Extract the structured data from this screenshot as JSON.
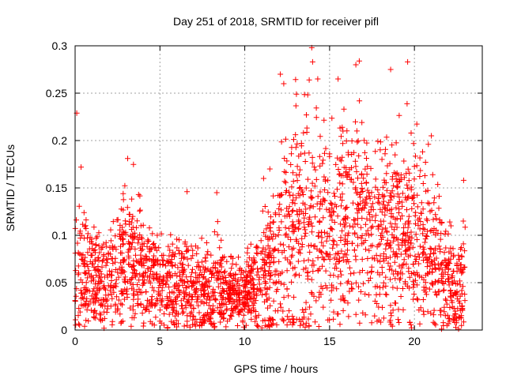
{
  "chart_data": {
    "type": "scatter",
    "title": "Day 251 of 2018, SRMTID for receiver pifl",
    "xlabel": "GPS time / hours",
    "ylabel": "SRMTID / TECUs",
    "xlim": [
      0,
      24
    ],
    "ylim": [
      0,
      0.3
    ],
    "x_ticks": [
      0,
      5,
      10,
      15,
      20
    ],
    "x_tick_labels": [
      "0",
      "5",
      "10",
      "15",
      "20"
    ],
    "y_ticks": [
      0,
      0.05,
      0.1,
      0.15,
      0.2,
      0.25,
      0.3
    ],
    "y_tick_labels": [
      "0",
      "0.05",
      "0.1",
      "0.15",
      "0.2",
      "0.25",
      "0.3"
    ],
    "grid": true,
    "marker": "plus",
    "colors": {
      "series": "#ff0000",
      "axes": "#000000",
      "grid": "#a0a0a0"
    },
    "series": [
      {
        "envelope_hours": [
          0,
          0.5,
          1,
          1.5,
          2,
          2.5,
          3,
          3.5,
          4,
          4.5,
          5,
          5.5,
          6,
          6.5,
          7,
          7.5,
          8,
          8.5,
          9,
          9.5,
          10,
          10.5,
          11,
          11.5,
          12,
          12.5,
          13,
          13.5,
          14,
          14.5,
          15,
          15.5,
          16,
          16.5,
          17,
          17.5,
          18,
          18.5,
          19,
          19.5,
          20,
          20.5,
          21,
          21.5,
          22,
          22.5,
          23
        ],
        "envelope_median": [
          0.055,
          0.06,
          0.055,
          0.05,
          0.05,
          0.065,
          0.075,
          0.07,
          0.065,
          0.06,
          0.055,
          0.05,
          0.048,
          0.045,
          0.045,
          0.042,
          0.045,
          0.05,
          0.04,
          0.035,
          0.045,
          0.05,
          0.06,
          0.07,
          0.085,
          0.1,
          0.11,
          0.11,
          0.11,
          0.1,
          0.1,
          0.11,
          0.12,
          0.12,
          0.11,
          0.1,
          0.1,
          0.11,
          0.1,
          0.1,
          0.11,
          0.1,
          0.09,
          0.07,
          0.05,
          0.04,
          0.06
        ],
        "envelope_spread": [
          0.045,
          0.04,
          0.035,
          0.035,
          0.035,
          0.04,
          0.045,
          0.045,
          0.04,
          0.035,
          0.03,
          0.03,
          0.03,
          0.03,
          0.03,
          0.03,
          0.03,
          0.035,
          0.025,
          0.02,
          0.025,
          0.03,
          0.04,
          0.05,
          0.06,
          0.07,
          0.07,
          0.07,
          0.07,
          0.065,
          0.065,
          0.07,
          0.07,
          0.07,
          0.065,
          0.06,
          0.065,
          0.07,
          0.06,
          0.06,
          0.065,
          0.06,
          0.055,
          0.045,
          0.035,
          0.03,
          0.035
        ],
        "points_per_hour": 110,
        "x_range": [
          0,
          23
        ],
        "extremes": [
          [
            0.1,
            0.229
          ],
          [
            0.35,
            0.172
          ],
          [
            3.1,
            0.181
          ],
          [
            6.6,
            0.146
          ],
          [
            8.35,
            0.145
          ],
          [
            12.1,
            0.27
          ],
          [
            12.3,
            0.26
          ],
          [
            13.95,
            0.298
          ],
          [
            14,
            0.283
          ],
          [
            13.8,
            0.264
          ],
          [
            14.3,
            0.265
          ],
          [
            15.5,
            0.265
          ],
          [
            16.55,
            0.28
          ],
          [
            16.75,
            0.284
          ],
          [
            18.6,
            0.275
          ],
          [
            19.6,
            0.283
          ],
          [
            21,
            0.205
          ],
          [
            21.6,
            0.001
          ],
          [
            22.6,
            0.001
          ],
          [
            22.9,
            0.158
          ]
        ]
      }
    ]
  }
}
